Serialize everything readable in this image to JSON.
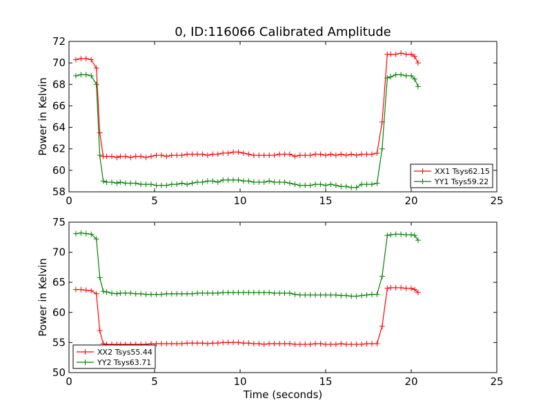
{
  "title": "0, ID:116066 Calibrated Amplitude",
  "chart_data": [
    {
      "type": "line",
      "ylabel": "Power in Kelvin",
      "xlabel": "",
      "xlim": [
        0,
        25
      ],
      "ylim": [
        58,
        72
      ],
      "xticks": [
        "0",
        "5",
        "10",
        "15",
        "20",
        "25"
      ],
      "yticks": [
        "58",
        "60",
        "62",
        "64",
        "66",
        "68",
        "70",
        "72"
      ],
      "legend_position": "lower right",
      "series": [
        {
          "name": "XX1 Tsys62.15",
          "color": "#ff0000",
          "x": [
            0.4,
            0.7,
            1.0,
            1.3,
            1.6,
            1.8,
            2.0,
            2.2,
            2.5,
            2.8,
            3.0,
            3.3,
            3.6,
            3.9,
            4.2,
            4.5,
            4.8,
            5.1,
            5.4,
            5.7,
            6.0,
            6.3,
            6.6,
            6.9,
            7.2,
            7.5,
            7.8,
            8.1,
            8.4,
            8.7,
            9.0,
            9.3,
            9.6,
            9.9,
            10.2,
            10.5,
            10.8,
            11.1,
            11.4,
            11.7,
            12.0,
            12.3,
            12.6,
            12.9,
            13.2,
            13.5,
            13.8,
            14.1,
            14.4,
            14.7,
            15.0,
            15.3,
            15.6,
            15.9,
            16.2,
            16.5,
            16.8,
            17.1,
            17.4,
            17.7,
            18.0,
            18.3,
            18.6,
            18.8,
            19.1,
            19.4,
            19.7,
            20.0,
            20.2,
            20.4
          ],
          "y": [
            70.3,
            70.4,
            70.4,
            70.3,
            69.5,
            63.5,
            61.3,
            61.3,
            61.3,
            61.2,
            61.3,
            61.3,
            61.2,
            61.3,
            61.3,
            61.2,
            61.3,
            61.4,
            61.4,
            61.3,
            61.4,
            61.4,
            61.4,
            61.5,
            61.5,
            61.5,
            61.5,
            61.4,
            61.5,
            61.5,
            61.6,
            61.6,
            61.7,
            61.7,
            61.6,
            61.5,
            61.4,
            61.4,
            61.4,
            61.4,
            61.4,
            61.5,
            61.5,
            61.5,
            61.3,
            61.4,
            61.4,
            61.4,
            61.5,
            61.5,
            61.4,
            61.5,
            61.4,
            61.5,
            61.4,
            61.5,
            61.4,
            61.5,
            61.5,
            61.5,
            61.6,
            64.5,
            70.8,
            70.8,
            70.8,
            70.9,
            70.8,
            70.8,
            70.6,
            70.0
          ]
        },
        {
          "name": "YY1 Tsys59.22",
          "color": "#008000",
          "x": [
            0.4,
            0.7,
            1.0,
            1.3,
            1.6,
            1.8,
            2.0,
            2.2,
            2.5,
            2.8,
            3.0,
            3.3,
            3.6,
            3.9,
            4.2,
            4.5,
            4.8,
            5.1,
            5.4,
            5.7,
            6.0,
            6.3,
            6.6,
            6.9,
            7.2,
            7.5,
            7.8,
            8.1,
            8.4,
            8.7,
            9.0,
            9.3,
            9.6,
            9.9,
            10.2,
            10.5,
            10.8,
            11.1,
            11.4,
            11.7,
            12.0,
            12.3,
            12.6,
            12.9,
            13.2,
            13.5,
            13.8,
            14.1,
            14.4,
            14.7,
            15.0,
            15.3,
            15.6,
            15.9,
            16.2,
            16.5,
            16.8,
            17.1,
            17.4,
            17.7,
            18.0,
            18.3,
            18.6,
            18.8,
            19.1,
            19.4,
            19.7,
            20.0,
            20.2,
            20.4
          ],
          "y": [
            68.8,
            68.9,
            68.9,
            68.8,
            68.0,
            61.4,
            59.0,
            58.9,
            58.9,
            58.8,
            58.9,
            58.8,
            58.8,
            58.8,
            58.7,
            58.7,
            58.7,
            58.6,
            58.6,
            58.6,
            58.7,
            58.7,
            58.8,
            58.7,
            58.8,
            58.9,
            58.9,
            59.0,
            59.0,
            58.9,
            59.1,
            59.1,
            59.1,
            59.1,
            59.0,
            59.0,
            58.9,
            58.9,
            58.9,
            59.0,
            58.9,
            58.9,
            58.9,
            58.8,
            58.7,
            58.6,
            58.6,
            58.6,
            58.7,
            58.7,
            58.6,
            58.7,
            58.6,
            58.5,
            58.5,
            58.4,
            58.4,
            58.7,
            58.7,
            58.7,
            58.8,
            62.0,
            68.6,
            68.7,
            68.9,
            68.9,
            68.8,
            68.8,
            68.5,
            67.8
          ]
        }
      ]
    },
    {
      "type": "line",
      "ylabel": "Power in Kelvin",
      "xlabel": "Time (seconds)",
      "xlim": [
        0,
        25
      ],
      "ylim": [
        50,
        75
      ],
      "xticks": [
        "0",
        "5",
        "10",
        "15",
        "20",
        "25"
      ],
      "yticks": [
        "50",
        "55",
        "60",
        "65",
        "70",
        "75"
      ],
      "legend_position": "lower left",
      "series": [
        {
          "name": "XX2 Tsys55.44",
          "color": "#ff0000",
          "x": [
            0.4,
            0.7,
            1.0,
            1.3,
            1.6,
            1.8,
            2.0,
            2.2,
            2.5,
            2.8,
            3.0,
            3.3,
            3.6,
            3.9,
            4.2,
            4.5,
            4.8,
            5.1,
            5.4,
            5.7,
            6.0,
            6.3,
            6.6,
            6.9,
            7.2,
            7.5,
            7.8,
            8.1,
            8.4,
            8.7,
            9.0,
            9.3,
            9.6,
            9.9,
            10.2,
            10.5,
            10.8,
            11.1,
            11.4,
            11.7,
            12.0,
            12.3,
            12.6,
            12.9,
            13.2,
            13.5,
            13.8,
            14.1,
            14.4,
            14.7,
            15.0,
            15.3,
            15.6,
            15.9,
            16.2,
            16.5,
            16.8,
            17.1,
            17.4,
            17.7,
            18.0,
            18.3,
            18.6,
            18.8,
            19.1,
            19.4,
            19.7,
            20.0,
            20.2,
            20.4
          ],
          "y": [
            63.8,
            63.8,
            63.7,
            63.6,
            63.1,
            57.0,
            54.8,
            54.7,
            54.7,
            54.7,
            54.7,
            54.7,
            54.7,
            54.7,
            54.7,
            54.7,
            54.8,
            54.8,
            54.8,
            54.8,
            54.8,
            54.8,
            54.8,
            54.9,
            54.9,
            54.9,
            54.9,
            54.8,
            54.9,
            54.9,
            55.0,
            55.0,
            55.0,
            55.0,
            54.9,
            54.9,
            54.8,
            54.8,
            54.7,
            54.8,
            54.8,
            54.8,
            54.8,
            54.8,
            54.7,
            54.7,
            54.7,
            54.7,
            54.8,
            54.8,
            54.7,
            54.7,
            54.7,
            54.8,
            54.7,
            54.7,
            54.7,
            54.7,
            54.8,
            54.8,
            54.8,
            57.7,
            64.0,
            64.1,
            64.1,
            64.1,
            64.0,
            64.0,
            63.8,
            63.3
          ]
        },
        {
          "name": "YY2 Tsys63.71",
          "color": "#008000",
          "x": [
            0.4,
            0.7,
            1.0,
            1.3,
            1.6,
            1.8,
            2.0,
            2.2,
            2.5,
            2.8,
            3.0,
            3.3,
            3.6,
            3.9,
            4.2,
            4.5,
            4.8,
            5.1,
            5.4,
            5.7,
            6.0,
            6.3,
            6.6,
            6.9,
            7.2,
            7.5,
            7.8,
            8.1,
            8.4,
            8.7,
            9.0,
            9.3,
            9.6,
            9.9,
            10.2,
            10.5,
            10.8,
            11.1,
            11.4,
            11.7,
            12.0,
            12.3,
            12.6,
            12.9,
            13.2,
            13.5,
            13.8,
            14.1,
            14.4,
            14.7,
            15.0,
            15.3,
            15.6,
            15.9,
            16.2,
            16.5,
            16.8,
            17.1,
            17.4,
            17.7,
            18.0,
            18.3,
            18.6,
            18.8,
            19.1,
            19.4,
            19.7,
            20.0,
            20.2,
            20.4
          ],
          "y": [
            73.1,
            73.2,
            73.1,
            73.0,
            72.2,
            65.8,
            63.5,
            63.4,
            63.2,
            63.1,
            63.2,
            63.2,
            63.2,
            63.1,
            63.1,
            63.0,
            63.0,
            63.0,
            63.0,
            63.1,
            63.1,
            63.1,
            63.1,
            63.1,
            63.1,
            63.2,
            63.2,
            63.2,
            63.2,
            63.2,
            63.3,
            63.3,
            63.3,
            63.3,
            63.3,
            63.3,
            63.3,
            63.3,
            63.3,
            63.3,
            63.2,
            63.2,
            63.2,
            63.2,
            63.0,
            62.9,
            62.9,
            62.9,
            62.9,
            62.9,
            62.9,
            62.9,
            62.9,
            62.8,
            62.8,
            62.7,
            62.7,
            62.8,
            62.9,
            63.0,
            63.0,
            66.0,
            72.8,
            72.9,
            73.0,
            73.0,
            72.9,
            72.9,
            72.8,
            72.0
          ]
        }
      ]
    }
  ]
}
